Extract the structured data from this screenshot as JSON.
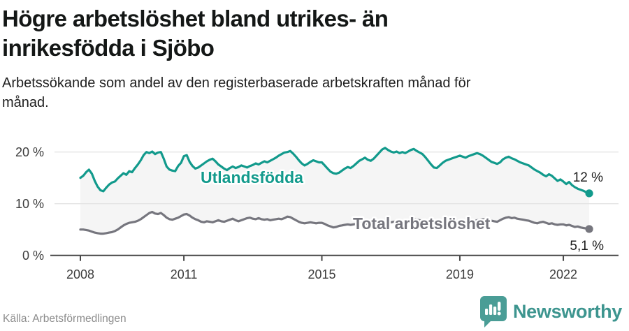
{
  "header": {
    "title_line1": "Högre arbetslöshet bland utrikes- än",
    "title_line2": "inrikesfödda i Sjöbo",
    "subtitle_line1": "Arbetssökande som andel av den registerbaserade arbetskraften månad för",
    "subtitle_line2": "månad."
  },
  "footer": {
    "source": "Källa: Arbetsförmedlingen",
    "brand": "Newsworthy"
  },
  "colors": {
    "accent_teal": "#129a8c",
    "series_gray": "#76767e",
    "brand_teal": "#3d958f",
    "logo_teal": "#4a9d96",
    "grid": "#e4e4e4",
    "axis": "#474747",
    "fill_between": "#f5f5f5",
    "title_text": "#141716",
    "tick_text": "#3d3d3d"
  },
  "chart_data": {
    "type": "line",
    "unit": "%",
    "x_start_year": 2008,
    "x_step_months": 1,
    "x_end_label_period": "2022",
    "ylim": [
      0,
      22
    ],
    "grid": "horizontal",
    "y_ticks": [
      {
        "label": "0 %",
        "value": 0
      },
      {
        "label": "10 %",
        "value": 10
      },
      {
        "label": "20 %",
        "value": 20
      }
    ],
    "x_ticks": [
      {
        "label": "2008",
        "year": 2008
      },
      {
        "label": "2011",
        "year": 2011
      },
      {
        "label": "2015",
        "year": 2015
      },
      {
        "label": "2019",
        "year": 2019
      },
      {
        "label": "2022",
        "year": 2022
      }
    ],
    "fill_between_series": true,
    "series": [
      {
        "name": "Utlandsfödda",
        "color": "#129a8c",
        "end_value": 12.0,
        "end_label": "12 %",
        "values": [
          15.0,
          15.4,
          16.1,
          16.6,
          15.8,
          14.4,
          13.3,
          12.6,
          12.4,
          13.1,
          13.7,
          14.1,
          14.3,
          14.9,
          15.4,
          15.9,
          15.6,
          16.3,
          16.1,
          16.9,
          17.6,
          18.4,
          19.4,
          20.0,
          19.8,
          20.1,
          19.6,
          19.9,
          20.0,
          18.7,
          17.2,
          16.6,
          16.4,
          16.3,
          17.3,
          17.9,
          19.2,
          19.4,
          18.1,
          17.3,
          16.8,
          17.0,
          17.4,
          17.8,
          18.2,
          18.5,
          18.7,
          18.2,
          17.6,
          17.2,
          16.8,
          16.5,
          16.9,
          17.2,
          16.9,
          17.1,
          17.4,
          17.2,
          17.0,
          17.3,
          17.5,
          17.8,
          17.6,
          17.9,
          18.2,
          18.0,
          18.3,
          18.6,
          18.9,
          19.3,
          19.6,
          19.9,
          20.0,
          20.2,
          19.7,
          19.1,
          18.4,
          17.8,
          17.4,
          17.7,
          18.1,
          18.4,
          18.2,
          18.0,
          18.0,
          17.4,
          16.8,
          16.2,
          15.9,
          15.8,
          16.0,
          16.4,
          16.8,
          17.1,
          16.9,
          17.3,
          17.8,
          18.3,
          18.6,
          18.9,
          18.5,
          18.3,
          18.7,
          19.3,
          19.9,
          20.5,
          20.8,
          20.4,
          20.1,
          19.9,
          20.1,
          19.8,
          20.0,
          19.8,
          20.1,
          20.4,
          20.6,
          20.2,
          19.9,
          19.6,
          19.0,
          18.3,
          17.6,
          17.0,
          16.9,
          17.4,
          17.9,
          18.3,
          18.5,
          18.7,
          18.9,
          19.1,
          19.3,
          19.1,
          18.9,
          19.2,
          19.4,
          19.6,
          19.8,
          19.6,
          19.3,
          18.9,
          18.5,
          18.1,
          17.9,
          17.7,
          18.0,
          18.6,
          18.9,
          19.1,
          18.8,
          18.6,
          18.3,
          18.0,
          17.8,
          17.6,
          17.4,
          17.0,
          16.6,
          16.3,
          16.0,
          15.6,
          15.3,
          15.7,
          15.4,
          14.9,
          14.4,
          14.7,
          14.3,
          13.8,
          14.2,
          13.6,
          13.2,
          12.9,
          12.7,
          12.5,
          12.2,
          12.0
        ]
      },
      {
        "name": "Total arbetslöshet",
        "color": "#76767e",
        "end_value": 5.1,
        "end_label": "5,1 %",
        "values": [
          5.0,
          5.0,
          4.9,
          4.8,
          4.6,
          4.4,
          4.3,
          4.2,
          4.2,
          4.3,
          4.4,
          4.5,
          4.7,
          5.0,
          5.4,
          5.8,
          6.1,
          6.3,
          6.4,
          6.5,
          6.7,
          7.0,
          7.4,
          7.8,
          8.2,
          8.4,
          8.1,
          8.0,
          8.2,
          7.8,
          7.3,
          7.0,
          6.9,
          7.1,
          7.3,
          7.6,
          7.9,
          8.0,
          7.7,
          7.3,
          7.0,
          6.8,
          6.5,
          6.4,
          6.6,
          6.5,
          6.4,
          6.6,
          6.8,
          6.6,
          6.5,
          6.7,
          6.9,
          7.1,
          6.8,
          6.6,
          6.8,
          7.0,
          7.2,
          7.3,
          7.1,
          7.0,
          7.2,
          7.0,
          6.9,
          7.0,
          6.8,
          6.9,
          7.0,
          7.1,
          7.0,
          7.2,
          7.5,
          7.4,
          7.1,
          6.8,
          6.5,
          6.3,
          6.2,
          6.3,
          6.4,
          6.3,
          6.2,
          6.3,
          6.3,
          6.1,
          5.8,
          5.6,
          5.4,
          5.5,
          5.7,
          5.8,
          5.9,
          6.0,
          5.9,
          6.0,
          6.1,
          6.2,
          6.3,
          6.2,
          6.1,
          6.2,
          6.4,
          6.5,
          6.6,
          6.7,
          6.6,
          6.5,
          6.4,
          6.5,
          6.6,
          6.5,
          6.6,
          6.7,
          6.8,
          6.9,
          7.0,
          6.9,
          6.8,
          6.7,
          6.6,
          6.4,
          6.2,
          6.1,
          6.0,
          6.1,
          6.2,
          6.3,
          6.4,
          6.3,
          6.4,
          6.5,
          6.4,
          6.3,
          6.2,
          6.3,
          6.5,
          6.6,
          6.8,
          6.9,
          7.0,
          6.9,
          6.8,
          6.7,
          6.6,
          6.5,
          6.8,
          7.1,
          7.3,
          7.4,
          7.2,
          7.3,
          7.1,
          7.0,
          6.9,
          6.8,
          6.7,
          6.5,
          6.3,
          6.2,
          6.4,
          6.5,
          6.3,
          6.1,
          6.2,
          6.0,
          5.9,
          6.0,
          6.0,
          5.8,
          5.9,
          5.7,
          5.5,
          5.6,
          5.4,
          5.3,
          5.2,
          5.1
        ]
      }
    ]
  }
}
